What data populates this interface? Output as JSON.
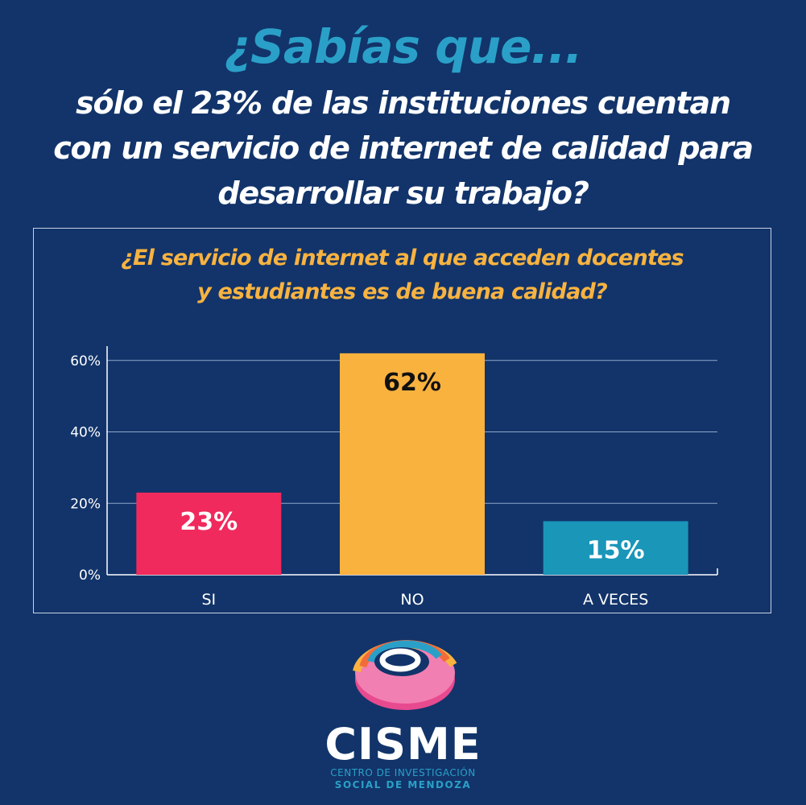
{
  "header": {
    "kicker": "¿Sabías que...",
    "lead_lines": [
      "sólo el 23% de las instituciones cuentan",
      "con un servicio de internet de calidad para",
      "desarrollar su trabajo?"
    ]
  },
  "chart_data": {
    "type": "bar",
    "title_lines": [
      "¿El servicio de internet al que acceden docentes",
      "y estudiantes es de buena calidad?"
    ],
    "categories": [
      "SI",
      "NO",
      "A VECES"
    ],
    "values": [
      23,
      62,
      15
    ],
    "data_labels": [
      "23%",
      "62%",
      "15%"
    ],
    "bar_colors": [
      "#f02a5d",
      "#fab23f",
      "#1a96b9"
    ],
    "label_colors": [
      "#ffffff",
      "#111111",
      "#ffffff"
    ],
    "yticks": [
      0,
      20,
      40,
      60
    ],
    "ytick_labels": [
      "0%",
      "20%",
      "40%",
      "60%"
    ],
    "ylim": [
      0,
      64
    ],
    "grid": true,
    "xlabel": "",
    "ylabel": ""
  },
  "brand": {
    "name": "CISME",
    "subtitle_line1": "CENTRO DE INVESTIGACIÓN",
    "subtitle_line2": "SOCIAL DE MENDOZA",
    "logo_icon": "cisme-rings-logo-icon"
  }
}
